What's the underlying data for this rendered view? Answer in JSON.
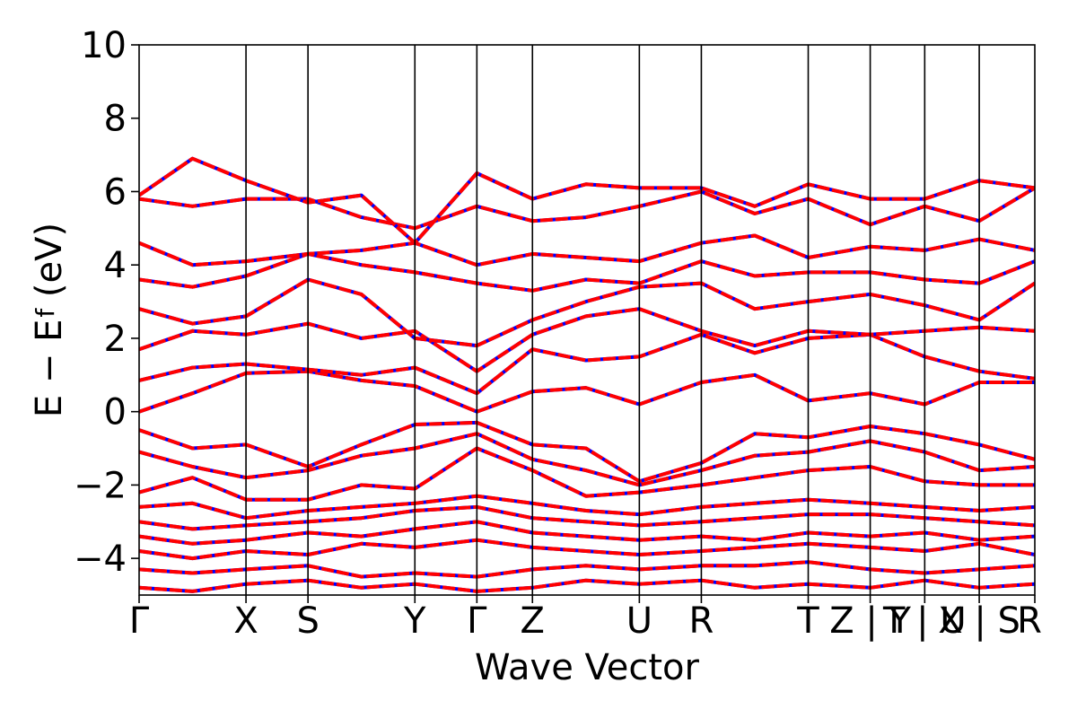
{
  "chart_data": {
    "type": "line",
    "title": "",
    "xlabel": "Wave Vector",
    "ylabel": "E − E_f (eV)",
    "ylabel_parts": {
      "main": "E − E",
      "sub": "f",
      "unit": " (eV)"
    },
    "ylim": [
      -5,
      10
    ],
    "yticks": [
      -4,
      -2,
      0,
      2,
      4,
      6,
      8,
      10
    ],
    "ytick_labels": [
      "−4",
      "−2",
      "0",
      "2",
      "4",
      "6",
      "8",
      "10"
    ],
    "grid": false,
    "kpath_labels": [
      "Γ",
      "X",
      "S",
      "Y",
      "Γ",
      "Z",
      "U",
      "R",
      "T",
      "Z | Y",
      "T | U",
      "X | S",
      "R"
    ],
    "kpath_positions": [
      0.0,
      1.0,
      1.58,
      2.58,
      3.16,
      3.68,
      4.68,
      5.26,
      6.26,
      6.84,
      7.35,
      7.86,
      8.38
    ],
    "series": [
      {
        "color": "#0000ff",
        "style": "solid"
      },
      {
        "color": "#ff0000",
        "style": "dashed"
      }
    ],
    "bands": [
      {
        "x": [
          0.0,
          0.5,
          1.0,
          1.58,
          2.08,
          2.58,
          3.16,
          3.68,
          4.18,
          4.68,
          5.26,
          5.76,
          6.26,
          6.84,
          7.35,
          7.86,
          8.38
        ],
        "y": [
          0.0,
          0.5,
          1.05,
          1.1,
          0.85,
          0.7,
          0.0,
          0.55,
          0.65,
          0.2,
          0.8,
          1.0,
          0.3,
          0.5,
          0.2,
          0.8,
          0.8
        ]
      },
      {
        "x": [
          0.0,
          0.5,
          1.0,
          1.58,
          2.08,
          2.58,
          3.16,
          3.68,
          4.18,
          4.68,
          5.26,
          5.76,
          6.26,
          6.84,
          7.35,
          7.86,
          8.38
        ],
        "y": [
          0.85,
          1.2,
          1.3,
          1.15,
          1.0,
          1.2,
          0.5,
          1.7,
          1.4,
          1.5,
          2.1,
          1.6,
          2.0,
          2.1,
          1.5,
          1.1,
          0.9
        ]
      },
      {
        "x": [
          0.0,
          0.5,
          1.0,
          1.58,
          2.08,
          2.58,
          3.16,
          3.68,
          4.18,
          4.68,
          5.26,
          5.76,
          6.26,
          6.84,
          7.35,
          7.86,
          8.38
        ],
        "y": [
          1.7,
          2.2,
          2.1,
          2.4,
          2.0,
          2.2,
          1.1,
          2.1,
          2.6,
          2.8,
          2.2,
          1.8,
          2.2,
          2.1,
          2.2,
          2.3,
          2.2
        ]
      },
      {
        "x": [
          0.0,
          0.5,
          1.0,
          1.58,
          2.08,
          2.58,
          3.16,
          3.68,
          4.18,
          4.68,
          5.26,
          5.76,
          6.26,
          6.84,
          7.35,
          7.86,
          8.38
        ],
        "y": [
          2.8,
          2.4,
          2.6,
          3.6,
          3.2,
          2.0,
          1.8,
          2.5,
          3.0,
          3.4,
          3.5,
          2.8,
          3.0,
          3.2,
          2.9,
          2.5,
          3.5
        ]
      },
      {
        "x": [
          0.0,
          0.5,
          1.0,
          1.58,
          2.08,
          2.58,
          3.16,
          3.68,
          4.18,
          4.68,
          5.26,
          5.76,
          6.26,
          6.84,
          7.35,
          7.86,
          8.38
        ],
        "y": [
          3.6,
          3.4,
          3.7,
          4.3,
          4.0,
          3.8,
          3.5,
          3.3,
          3.6,
          3.5,
          4.1,
          3.7,
          3.8,
          3.8,
          3.6,
          3.5,
          4.1
        ]
      },
      {
        "x": [
          0.0,
          0.5,
          1.0,
          1.58,
          2.08,
          2.58,
          3.16,
          3.68,
          4.18,
          4.68,
          5.26,
          5.76,
          6.26,
          6.84,
          7.35,
          7.86,
          8.38
        ],
        "y": [
          4.6,
          4.0,
          4.1,
          4.3,
          4.4,
          4.6,
          4.0,
          4.3,
          4.2,
          4.1,
          4.6,
          4.8,
          4.2,
          4.5,
          4.4,
          4.7,
          4.4
        ]
      },
      {
        "x": [
          0.0,
          0.5,
          1.0,
          1.58,
          2.08,
          2.58,
          3.16,
          3.68,
          4.18,
          4.68,
          5.26,
          5.76,
          6.26,
          6.84,
          7.35,
          7.86,
          8.38
        ],
        "y": [
          5.8,
          5.6,
          5.8,
          5.8,
          5.3,
          5.0,
          5.6,
          5.2,
          5.3,
          5.6,
          6.0,
          5.4,
          5.8,
          5.1,
          5.6,
          5.2,
          6.1
        ]
      },
      {
        "x": [
          0.0,
          0.5,
          1.0,
          1.58,
          2.08,
          2.58,
          3.16,
          3.68,
          4.18,
          4.68,
          5.26,
          5.76,
          6.26,
          6.84,
          7.35,
          7.86,
          8.38
        ],
        "y": [
          5.9,
          6.9,
          6.3,
          5.7,
          5.9,
          4.6,
          6.5,
          5.8,
          6.2,
          6.1,
          6.1,
          5.6,
          6.2,
          5.8,
          5.8,
          6.3,
          6.1
        ]
      },
      {
        "x": [
          0.0,
          0.5,
          1.0,
          1.58,
          2.08,
          2.58,
          3.16,
          3.68,
          4.18,
          4.68,
          5.26,
          5.76,
          6.26,
          6.84,
          7.35,
          7.86,
          8.38
        ],
        "y": [
          -0.5,
          -1.0,
          -0.9,
          -1.5,
          -0.9,
          -0.35,
          -0.3,
          -0.9,
          -1.0,
          -1.9,
          -1.4,
          -0.6,
          -0.7,
          -0.4,
          -0.6,
          -0.9,
          -1.3
        ]
      },
      {
        "x": [
          0.0,
          0.5,
          1.0,
          1.58,
          2.08,
          2.58,
          3.16,
          3.68,
          4.18,
          4.68,
          5.26,
          5.76,
          6.26,
          6.84,
          7.35,
          7.86,
          8.38
        ],
        "y": [
          -1.1,
          -1.5,
          -1.8,
          -1.6,
          -1.2,
          -1.0,
          -0.6,
          -1.3,
          -1.6,
          -2.0,
          -1.6,
          -1.2,
          -1.1,
          -0.8,
          -1.1,
          -1.6,
          -1.5
        ]
      },
      {
        "x": [
          0.0,
          0.5,
          1.0,
          1.58,
          2.08,
          2.58,
          3.16,
          3.68,
          4.18,
          4.68,
          5.26,
          5.76,
          6.26,
          6.84,
          7.35,
          7.86,
          8.38
        ],
        "y": [
          -2.2,
          -1.8,
          -2.4,
          -2.4,
          -2.0,
          -2.1,
          -1.0,
          -1.6,
          -2.3,
          -2.2,
          -2.0,
          -1.8,
          -1.6,
          -1.5,
          -1.9,
          -2.0,
          -2.0
        ]
      },
      {
        "x": [
          0.0,
          0.5,
          1.0,
          1.58,
          2.08,
          2.58,
          3.16,
          3.68,
          4.18,
          4.68,
          5.26,
          5.76,
          6.26,
          6.84,
          7.35,
          7.86,
          8.38
        ],
        "y": [
          -2.6,
          -2.5,
          -2.9,
          -2.7,
          -2.6,
          -2.5,
          -2.3,
          -2.5,
          -2.7,
          -2.8,
          -2.6,
          -2.5,
          -2.4,
          -2.5,
          -2.6,
          -2.7,
          -2.6
        ]
      },
      {
        "x": [
          0.0,
          0.5,
          1.0,
          1.58,
          2.08,
          2.58,
          3.16,
          3.68,
          4.18,
          4.68,
          5.26,
          5.76,
          6.26,
          6.84,
          7.35,
          7.86,
          8.38
        ],
        "y": [
          -3.0,
          -3.2,
          -3.1,
          -3.0,
          -2.9,
          -2.7,
          -2.6,
          -2.9,
          -3.0,
          -3.1,
          -3.0,
          -2.9,
          -2.8,
          -2.8,
          -2.9,
          -3.0,
          -3.1
        ]
      },
      {
        "x": [
          0.0,
          0.5,
          1.0,
          1.58,
          2.08,
          2.58,
          3.16,
          3.68,
          4.18,
          4.68,
          5.26,
          5.76,
          6.26,
          6.84,
          7.35,
          7.86,
          8.38
        ],
        "y": [
          -3.4,
          -3.6,
          -3.5,
          -3.3,
          -3.4,
          -3.2,
          -3.0,
          -3.3,
          -3.4,
          -3.5,
          -3.4,
          -3.5,
          -3.3,
          -3.4,
          -3.3,
          -3.5,
          -3.4
        ]
      },
      {
        "x": [
          0.0,
          0.5,
          1.0,
          1.58,
          2.08,
          2.58,
          3.16,
          3.68,
          4.18,
          4.68,
          5.26,
          5.76,
          6.26,
          6.84,
          7.35,
          7.86,
          8.38
        ],
        "y": [
          -3.8,
          -4.0,
          -3.8,
          -3.9,
          -3.6,
          -3.7,
          -3.5,
          -3.7,
          -3.8,
          -3.9,
          -3.8,
          -3.7,
          -3.6,
          -3.7,
          -3.8,
          -3.6,
          -3.9
        ]
      },
      {
        "x": [
          0.0,
          0.5,
          1.0,
          1.58,
          2.08,
          2.58,
          3.16,
          3.68,
          4.18,
          4.68,
          5.26,
          5.76,
          6.26,
          6.84,
          7.35,
          7.86,
          8.38
        ],
        "y": [
          -4.3,
          -4.4,
          -4.3,
          -4.2,
          -4.5,
          -4.4,
          -4.5,
          -4.3,
          -4.2,
          -4.3,
          -4.2,
          -4.2,
          -4.1,
          -4.3,
          -4.4,
          -4.3,
          -4.2
        ]
      },
      {
        "x": [
          0.0,
          0.5,
          1.0,
          1.58,
          2.08,
          2.58,
          3.16,
          3.68,
          4.18,
          4.68,
          5.26,
          5.76,
          6.26,
          6.84,
          7.35,
          7.86,
          8.38
        ],
        "y": [
          -4.8,
          -4.9,
          -4.7,
          -4.6,
          -4.8,
          -4.7,
          -4.9,
          -4.8,
          -4.6,
          -4.7,
          -4.6,
          -4.8,
          -4.7,
          -4.8,
          -4.6,
          -4.8,
          -4.7
        ]
      }
    ]
  }
}
